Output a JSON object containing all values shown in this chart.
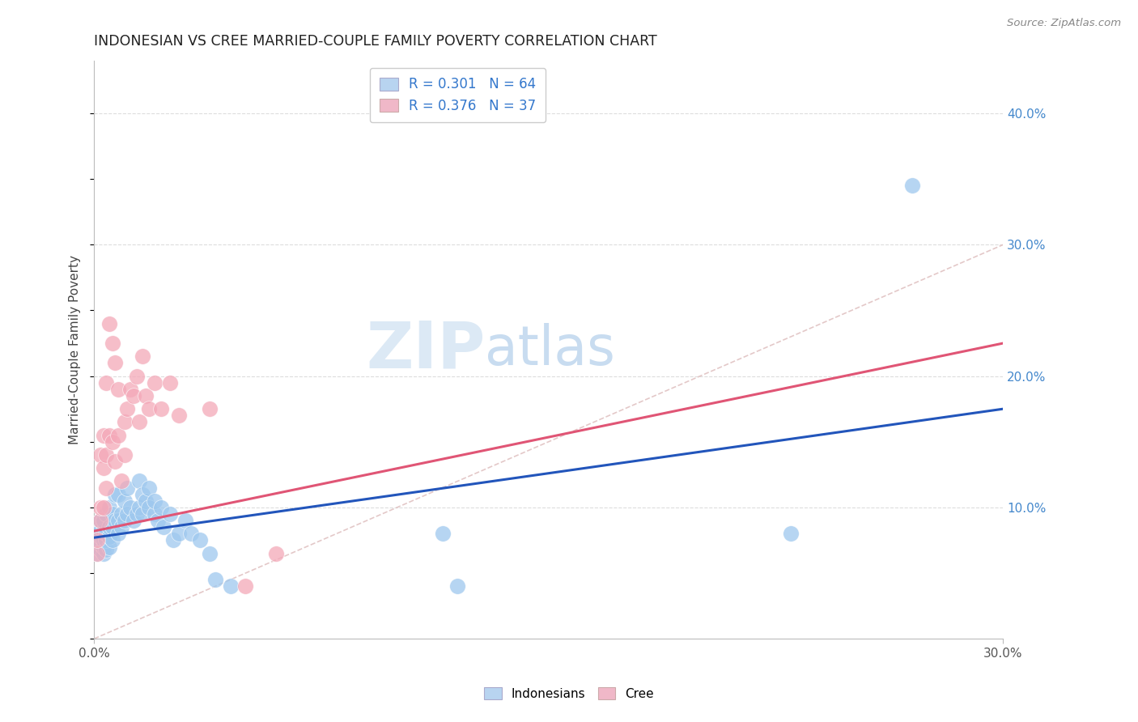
{
  "title": "INDONESIAN VS CREE MARRIED-COUPLE FAMILY POVERTY CORRELATION CHART",
  "source": "Source: ZipAtlas.com",
  "ylabel": "Married-Couple Family Poverty",
  "xlim": [
    0.0,
    0.3
  ],
  "ylim": [
    0.0,
    0.44
  ],
  "ytick_labels_right": [
    "10.0%",
    "20.0%",
    "30.0%",
    "40.0%"
  ],
  "ytick_vals_right": [
    0.1,
    0.2,
    0.3,
    0.4
  ],
  "R_indonesian": 0.301,
  "N_indonesian": 64,
  "R_cree": 0.376,
  "N_cree": 37,
  "blue_color": "#9EC8EE",
  "pink_color": "#F4A8B8",
  "blue_line_color": "#2255BB",
  "pink_line_color": "#E05575",
  "grid_color": "#DDDDDD",
  "watermark_color": "#DCE9F5",
  "legend_box_blue": "#B8D4F0",
  "legend_box_pink": "#F0B8C8",
  "blue_line_y0": 0.077,
  "blue_line_y1": 0.175,
  "pink_line_y0": 0.082,
  "pink_line_y1": 0.225,
  "indonesian_x": [
    0.001,
    0.001,
    0.001,
    0.001,
    0.002,
    0.002,
    0.002,
    0.002,
    0.002,
    0.003,
    0.003,
    0.003,
    0.003,
    0.003,
    0.004,
    0.004,
    0.004,
    0.004,
    0.005,
    0.005,
    0.005,
    0.005,
    0.006,
    0.006,
    0.006,
    0.007,
    0.007,
    0.008,
    0.008,
    0.008,
    0.009,
    0.009,
    0.01,
    0.01,
    0.011,
    0.011,
    0.012,
    0.013,
    0.014,
    0.015,
    0.015,
    0.016,
    0.016,
    0.017,
    0.018,
    0.018,
    0.02,
    0.02,
    0.021,
    0.022,
    0.023,
    0.025,
    0.026,
    0.028,
    0.03,
    0.032,
    0.035,
    0.038,
    0.04,
    0.045,
    0.115,
    0.12,
    0.23,
    0.27
  ],
  "indonesian_y": [
    0.065,
    0.07,
    0.075,
    0.08,
    0.068,
    0.072,
    0.078,
    0.082,
    0.09,
    0.065,
    0.07,
    0.075,
    0.082,
    0.09,
    0.068,
    0.075,
    0.08,
    0.095,
    0.07,
    0.078,
    0.085,
    0.1,
    0.075,
    0.085,
    0.095,
    0.09,
    0.11,
    0.08,
    0.09,
    0.11,
    0.085,
    0.095,
    0.09,
    0.105,
    0.095,
    0.115,
    0.1,
    0.09,
    0.095,
    0.1,
    0.12,
    0.095,
    0.11,
    0.105,
    0.1,
    0.115,
    0.095,
    0.105,
    0.09,
    0.1,
    0.085,
    0.095,
    0.075,
    0.08,
    0.09,
    0.08,
    0.075,
    0.065,
    0.045,
    0.04,
    0.08,
    0.04,
    0.08,
    0.345
  ],
  "cree_x": [
    0.001,
    0.001,
    0.002,
    0.002,
    0.002,
    0.003,
    0.003,
    0.003,
    0.004,
    0.004,
    0.004,
    0.005,
    0.005,
    0.006,
    0.006,
    0.007,
    0.007,
    0.008,
    0.008,
    0.009,
    0.01,
    0.01,
    0.011,
    0.012,
    0.013,
    0.014,
    0.015,
    0.016,
    0.017,
    0.018,
    0.02,
    0.022,
    0.025,
    0.028,
    0.038,
    0.05,
    0.06
  ],
  "cree_y": [
    0.065,
    0.075,
    0.09,
    0.1,
    0.14,
    0.1,
    0.13,
    0.155,
    0.115,
    0.14,
    0.195,
    0.155,
    0.24,
    0.15,
    0.225,
    0.135,
    0.21,
    0.155,
    0.19,
    0.12,
    0.14,
    0.165,
    0.175,
    0.19,
    0.185,
    0.2,
    0.165,
    0.215,
    0.185,
    0.175,
    0.195,
    0.175,
    0.195,
    0.17,
    0.175,
    0.04,
    0.065
  ]
}
